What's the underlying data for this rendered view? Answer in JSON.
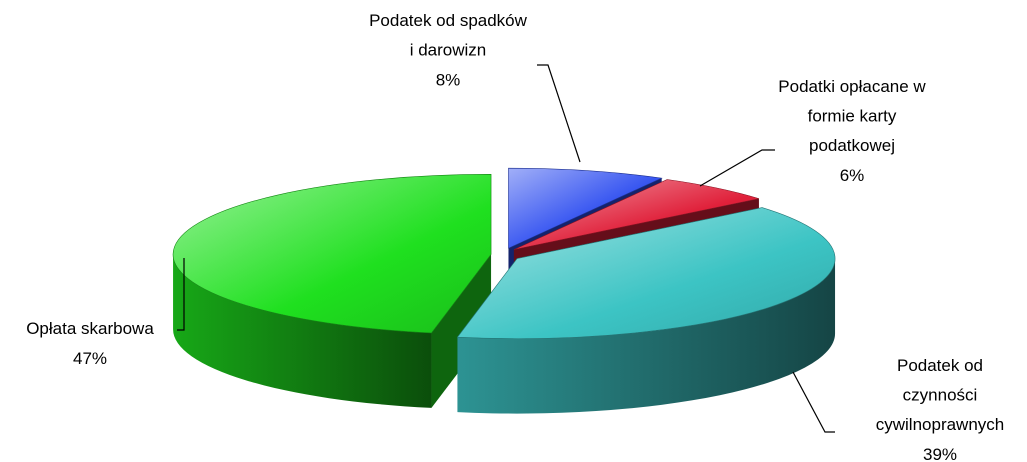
{
  "chart_data": {
    "type": "pie",
    "categories": [
      "Podatek od spadków i darowizn",
      "Podatki opłacane w formie karty podatkowej",
      "Podatek od czynności cywilnoprawnych",
      "Opłata skarbowa"
    ],
    "values": [
      8,
      6,
      39,
      47
    ],
    "value_labels": [
      "8%",
      "6%",
      "39%",
      "47%"
    ],
    "colors": [
      "#2d4df0",
      "#e0203a",
      "#3cc4c4",
      "#1fe01f"
    ]
  }
}
